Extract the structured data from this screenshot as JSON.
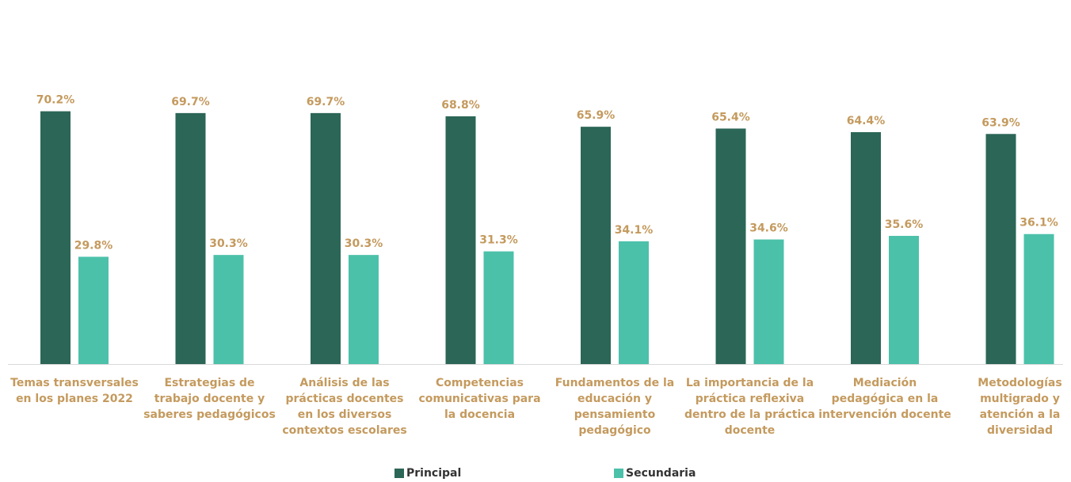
{
  "chart_data": {
    "type": "bar",
    "categories": [
      "Temas transversales en los planes 2022",
      "Estrategias de trabajo docente y saberes pedagógicos",
      "Análisis de las prácticas docentes en los diversos contextos escolares",
      "Competencias comunicativas para la docencia",
      "Fundamentos de la educación y pensamiento pedagógico",
      "La importancia de la práctica reflexiva dentro de la práctica docente",
      "Mediación pedagógica en la intervención docente",
      "Metodologías multigrado y atención a la diversidad"
    ],
    "series": [
      {
        "name": "Principal",
        "color": "#2b6656",
        "values": [
          70.2,
          69.7,
          69.7,
          68.8,
          65.9,
          65.4,
          64.4,
          63.9
        ],
        "labels": [
          "70.2%",
          "69.7%",
          "69.7%",
          "68.8%",
          "65.9%",
          "65.4%",
          "64.4%",
          "63.9%"
        ]
      },
      {
        "name": "Secundaria",
        "color": "#4cc1aa",
        "values": [
          29.8,
          30.3,
          30.3,
          31.3,
          34.1,
          34.6,
          35.6,
          36.1
        ],
        "labels": [
          "29.8%",
          "30.3%",
          "30.3%",
          "31.3%",
          "34.1%",
          "34.6%",
          "35.6%",
          "36.1%"
        ]
      }
    ],
    "ylim": [
      0,
      100
    ],
    "label_color": "#c49a5e",
    "grid": false,
    "legend_position": "bottom"
  }
}
